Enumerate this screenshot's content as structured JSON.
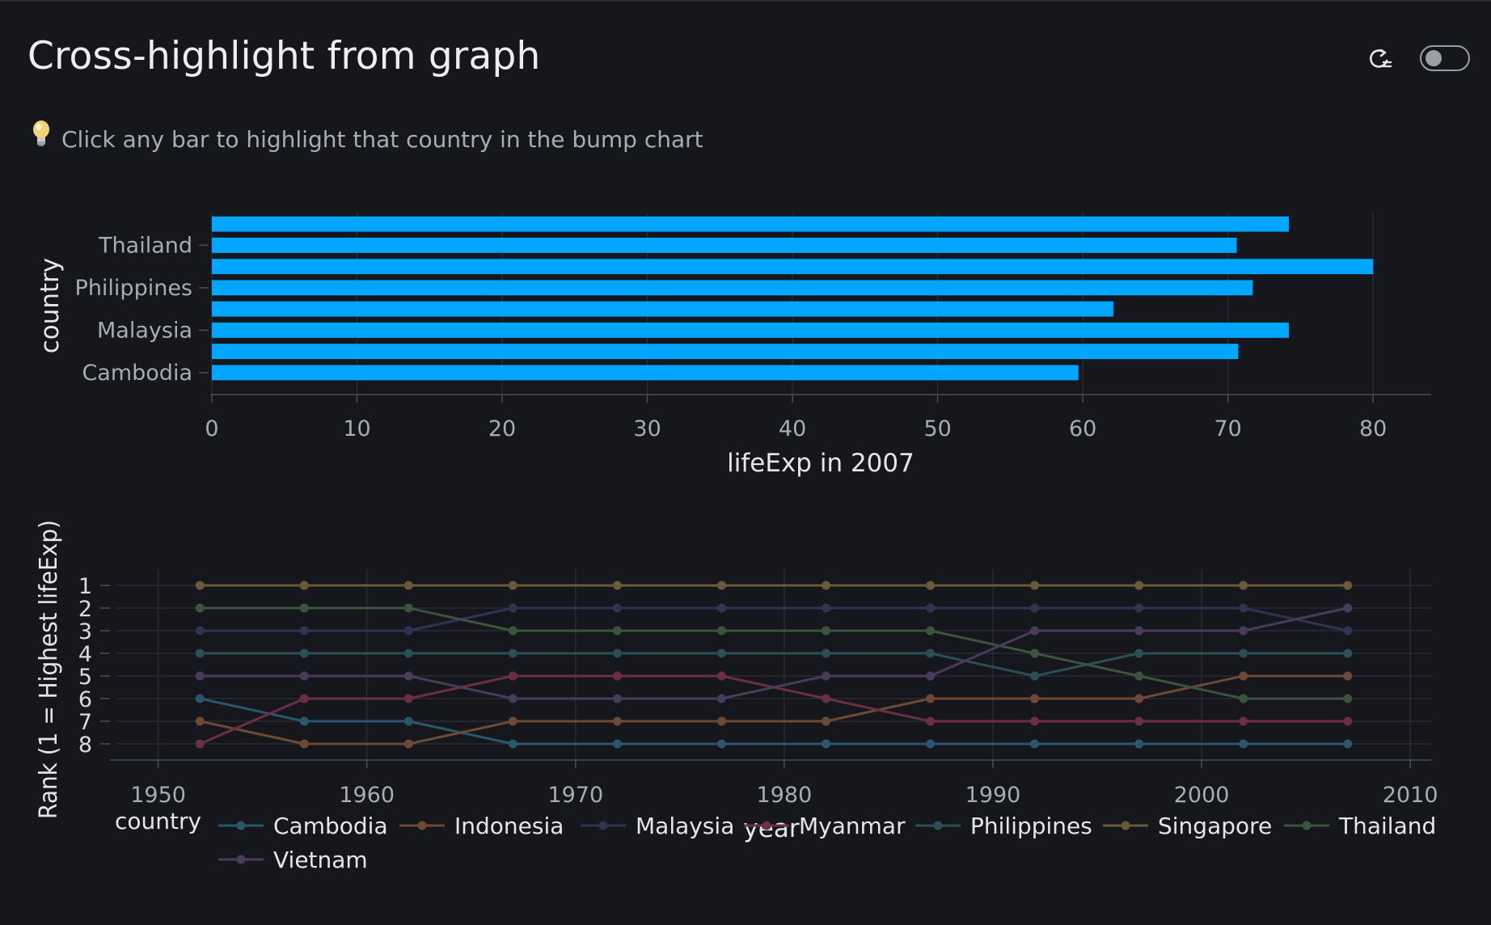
{
  "page": {
    "title": "Cross-highlight from graph",
    "hint": "Click any bar to highlight that country in the bump chart",
    "hint_icon": "lightbulb-icon",
    "reset_icon": "reset-view-icon",
    "toggle_state": "off"
  },
  "colors": {
    "background": "#15171c",
    "bar": "#00a6ff",
    "grid": "#2c3038",
    "axis_text": "#a8acb4"
  },
  "chart_data": [
    {
      "type": "bar",
      "orientation": "horizontal",
      "categories": [
        "Cambodia",
        "Indonesia",
        "Malaysia",
        "Myanmar",
        "Philippines",
        "Singapore",
        "Thailand",
        "Vietnam"
      ],
      "tick_labels": [
        "Cambodia",
        "Malaysia",
        "Philippines",
        "Thailand"
      ],
      "values": [
        59.7,
        70.7,
        74.2,
        62.1,
        71.7,
        80.0,
        70.6,
        74.2
      ],
      "xlabel": "lifeExp in 2007",
      "ylabel": "country",
      "xlim": [
        0,
        84
      ],
      "xticks": [
        0,
        10,
        20,
        30,
        40,
        50,
        60,
        70,
        80
      ],
      "grid": true
    },
    {
      "type": "line",
      "xlabel": "year",
      "ylabel": "Rank (1 = Highest lifeExp)",
      "xlim": [
        1948,
        2011
      ],
      "xticks": [
        1950,
        1960,
        1970,
        1980,
        1990,
        2000,
        2010
      ],
      "yticks": [
        1,
        2,
        3,
        4,
        5,
        6,
        7,
        8
      ],
      "y_reversed": true,
      "grid": true,
      "legend_title": "country",
      "legend_position": "bottom",
      "x": [
        1952,
        1957,
        1962,
        1967,
        1972,
        1977,
        1982,
        1987,
        1992,
        1997,
        2002,
        2007
      ],
      "series": [
        {
          "name": "Cambodia",
          "color": "#2b5670",
          "values": [
            6,
            7,
            7,
            8,
            8,
            8,
            8,
            8,
            8,
            8,
            8,
            8
          ]
        },
        {
          "name": "Indonesia",
          "color": "#6e4a35",
          "values": [
            7,
            8,
            8,
            7,
            7,
            7,
            7,
            6,
            6,
            6,
            5,
            5
          ]
        },
        {
          "name": "Malaysia",
          "color": "#2f3354",
          "values": [
            3,
            3,
            3,
            2,
            2,
            2,
            2,
            2,
            2,
            2,
            2,
            3
          ]
        },
        {
          "name": "Myanmar",
          "color": "#6b2f44",
          "values": [
            8,
            6,
            6,
            5,
            5,
            5,
            6,
            7,
            7,
            7,
            7,
            7
          ]
        },
        {
          "name": "Philippines",
          "color": "#2a4f56",
          "values": [
            4,
            4,
            4,
            4,
            4,
            4,
            4,
            4,
            5,
            4,
            4,
            4
          ]
        },
        {
          "name": "Singapore",
          "color": "#6a5a3a",
          "values": [
            1,
            1,
            1,
            1,
            1,
            1,
            1,
            1,
            1,
            1,
            1,
            1
          ]
        },
        {
          "name": "Thailand",
          "color": "#3b5440",
          "values": [
            2,
            2,
            2,
            3,
            3,
            3,
            3,
            3,
            4,
            5,
            6,
            6
          ]
        },
        {
          "name": "Vietnam",
          "color": "#4a3b5c",
          "values": [
            5,
            5,
            5,
            6,
            6,
            6,
            5,
            5,
            3,
            3,
            3,
            2
          ]
        }
      ]
    }
  ]
}
